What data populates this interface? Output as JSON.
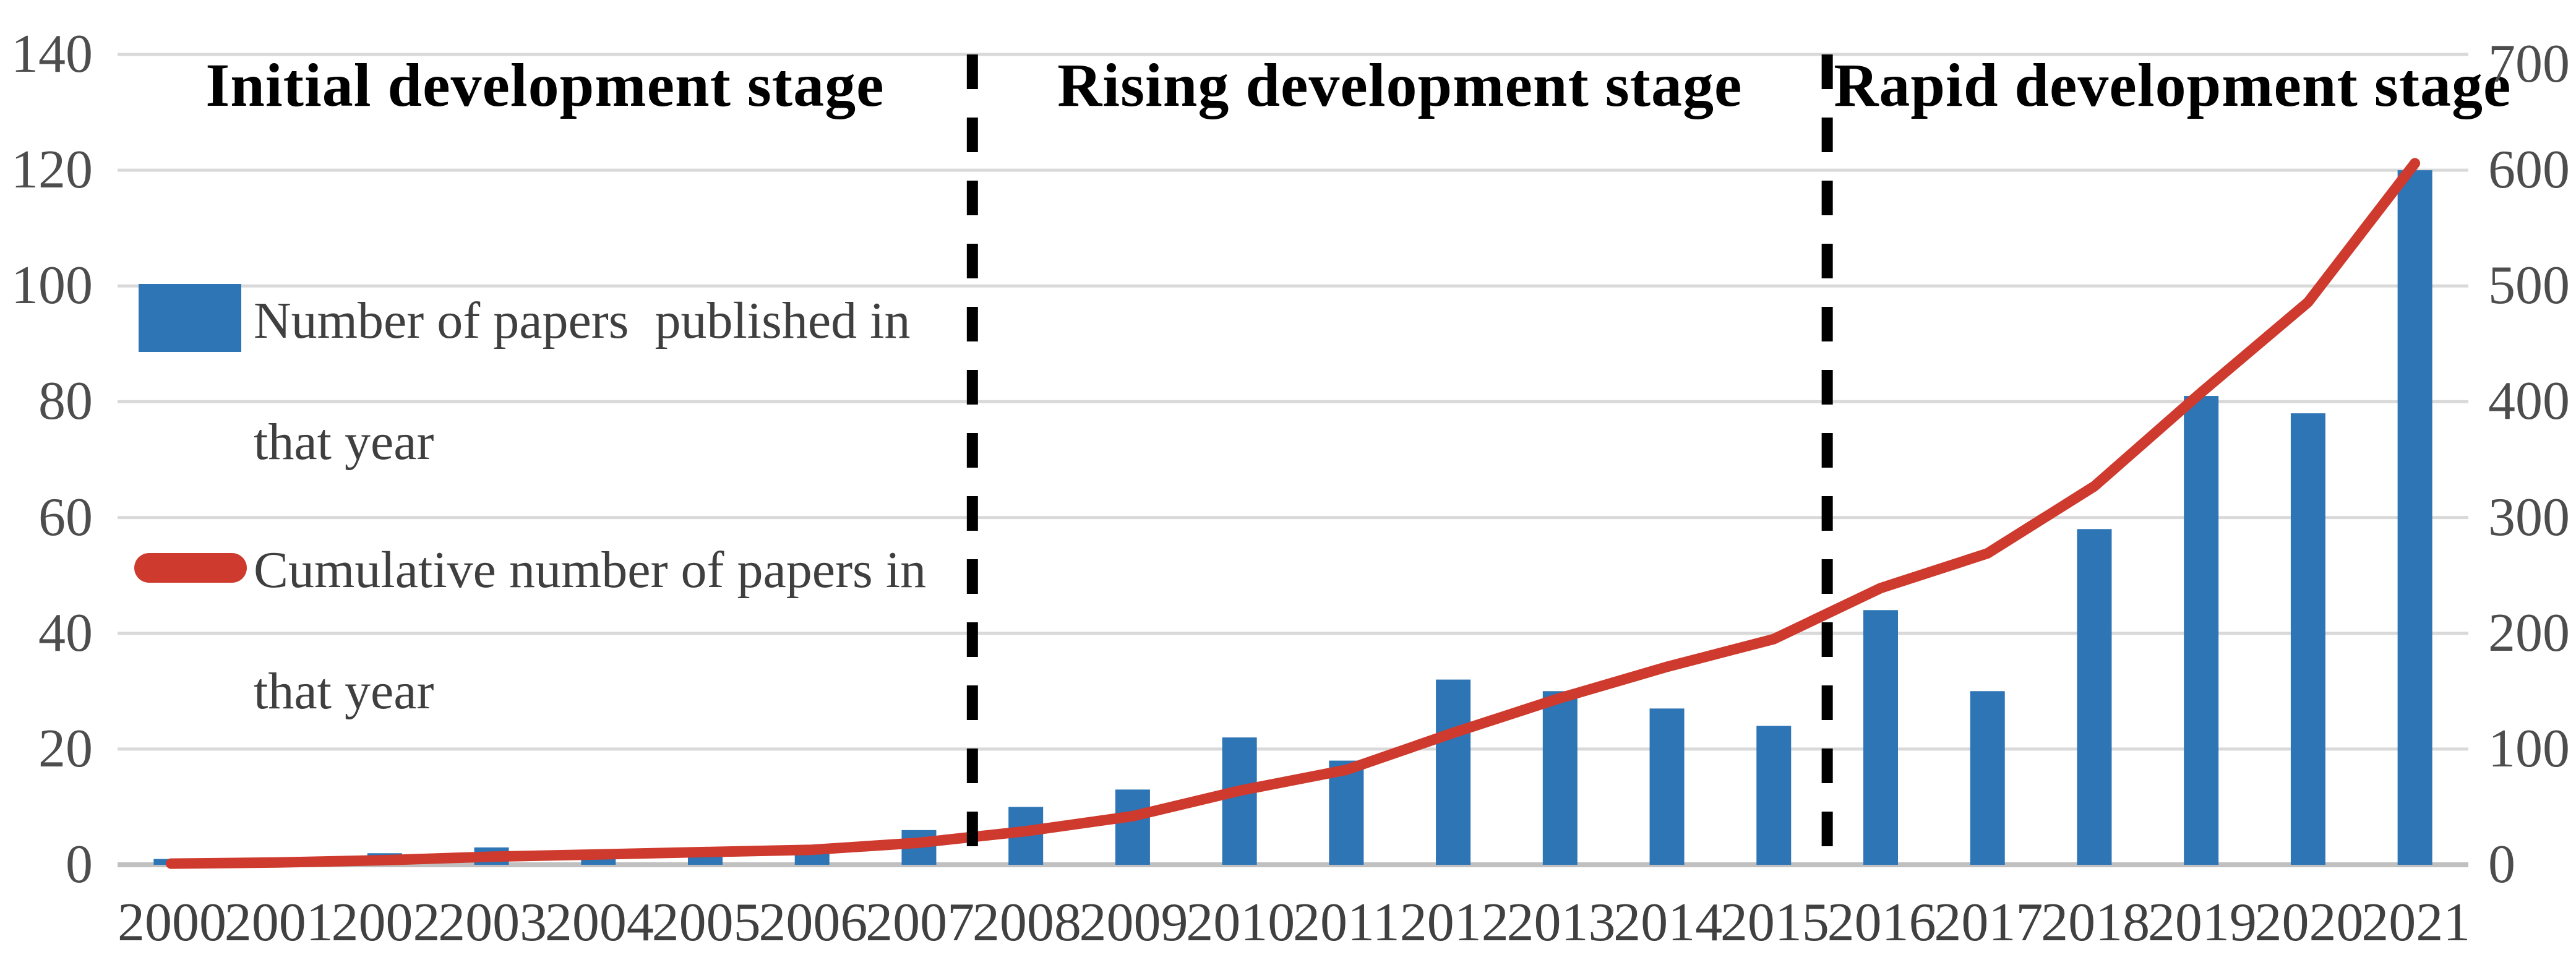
{
  "chart_data": {
    "type": "bar+line combo",
    "title": "",
    "stages": [
      {
        "label": "Initial development stage",
        "start_year": "2000",
        "end_year": "2007"
      },
      {
        "label": "Rising development stage",
        "start_year": "2008",
        "end_year": "2015"
      },
      {
        "label": "Rapid development stage",
        "start_year": "2016",
        "end_year": "2021"
      }
    ],
    "categories": [
      "2000",
      "2001",
      "2002",
      "2003",
      "2004",
      "2005",
      "2006",
      "2007",
      "2008",
      "2009",
      "2010",
      "2011",
      "2012",
      "2013",
      "2014",
      "2015",
      "2016",
      "2017",
      "2018",
      "2019",
      "2020",
      "2021"
    ],
    "series": [
      {
        "name": "Number of papers  published in that year",
        "type": "bar",
        "axis": "left",
        "color": "#2E75B6",
        "values": [
          1,
          1,
          2,
          3,
          2,
          2,
          2,
          6,
          10,
          13,
          22,
          18,
          32,
          30,
          27,
          24,
          44,
          30,
          58,
          81,
          78,
          120
        ]
      },
      {
        "name": "Cumulative number of papers in that year",
        "type": "line",
        "axis": "right",
        "color": "#CE3A2D",
        "values": [
          1,
          2,
          4,
          7,
          9,
          11,
          13,
          19,
          29,
          42,
          64,
          82,
          114,
          144,
          171,
          195,
          239,
          269,
          327,
          408,
          486,
          606
        ]
      }
    ],
    "axis_left": {
      "min": 0,
      "max": 140,
      "step": 20,
      "ticks": [
        "140",
        "120",
        "100",
        "80",
        "60",
        "40",
        "20",
        "0"
      ]
    },
    "axis_right": {
      "min": 0,
      "max": 700,
      "step": 100,
      "ticks": [
        "700",
        "600",
        "500",
        "400",
        "300",
        "200",
        "100",
        "0"
      ]
    },
    "legend": [
      {
        "swatch": "bar-swatch",
        "label": "Number of papers  published in\nthat year"
      },
      {
        "swatch": "line-swatch",
        "label": "Cumulative number of papers in\nthat year"
      }
    ],
    "grid": "horizontal gridlines on",
    "legend_position": "upper left inside plot"
  },
  "colors": {
    "bar": "#2E75B6",
    "line": "#CE3A2D",
    "grid": "#D9D9D9",
    "axis_line": "#C0C0C0",
    "tick_text": "#4D4D4D",
    "title_text": "#000000",
    "legend_text": "#3F3F3F",
    "stage_divider": "#000000",
    "background": "#FFFFFF"
  }
}
